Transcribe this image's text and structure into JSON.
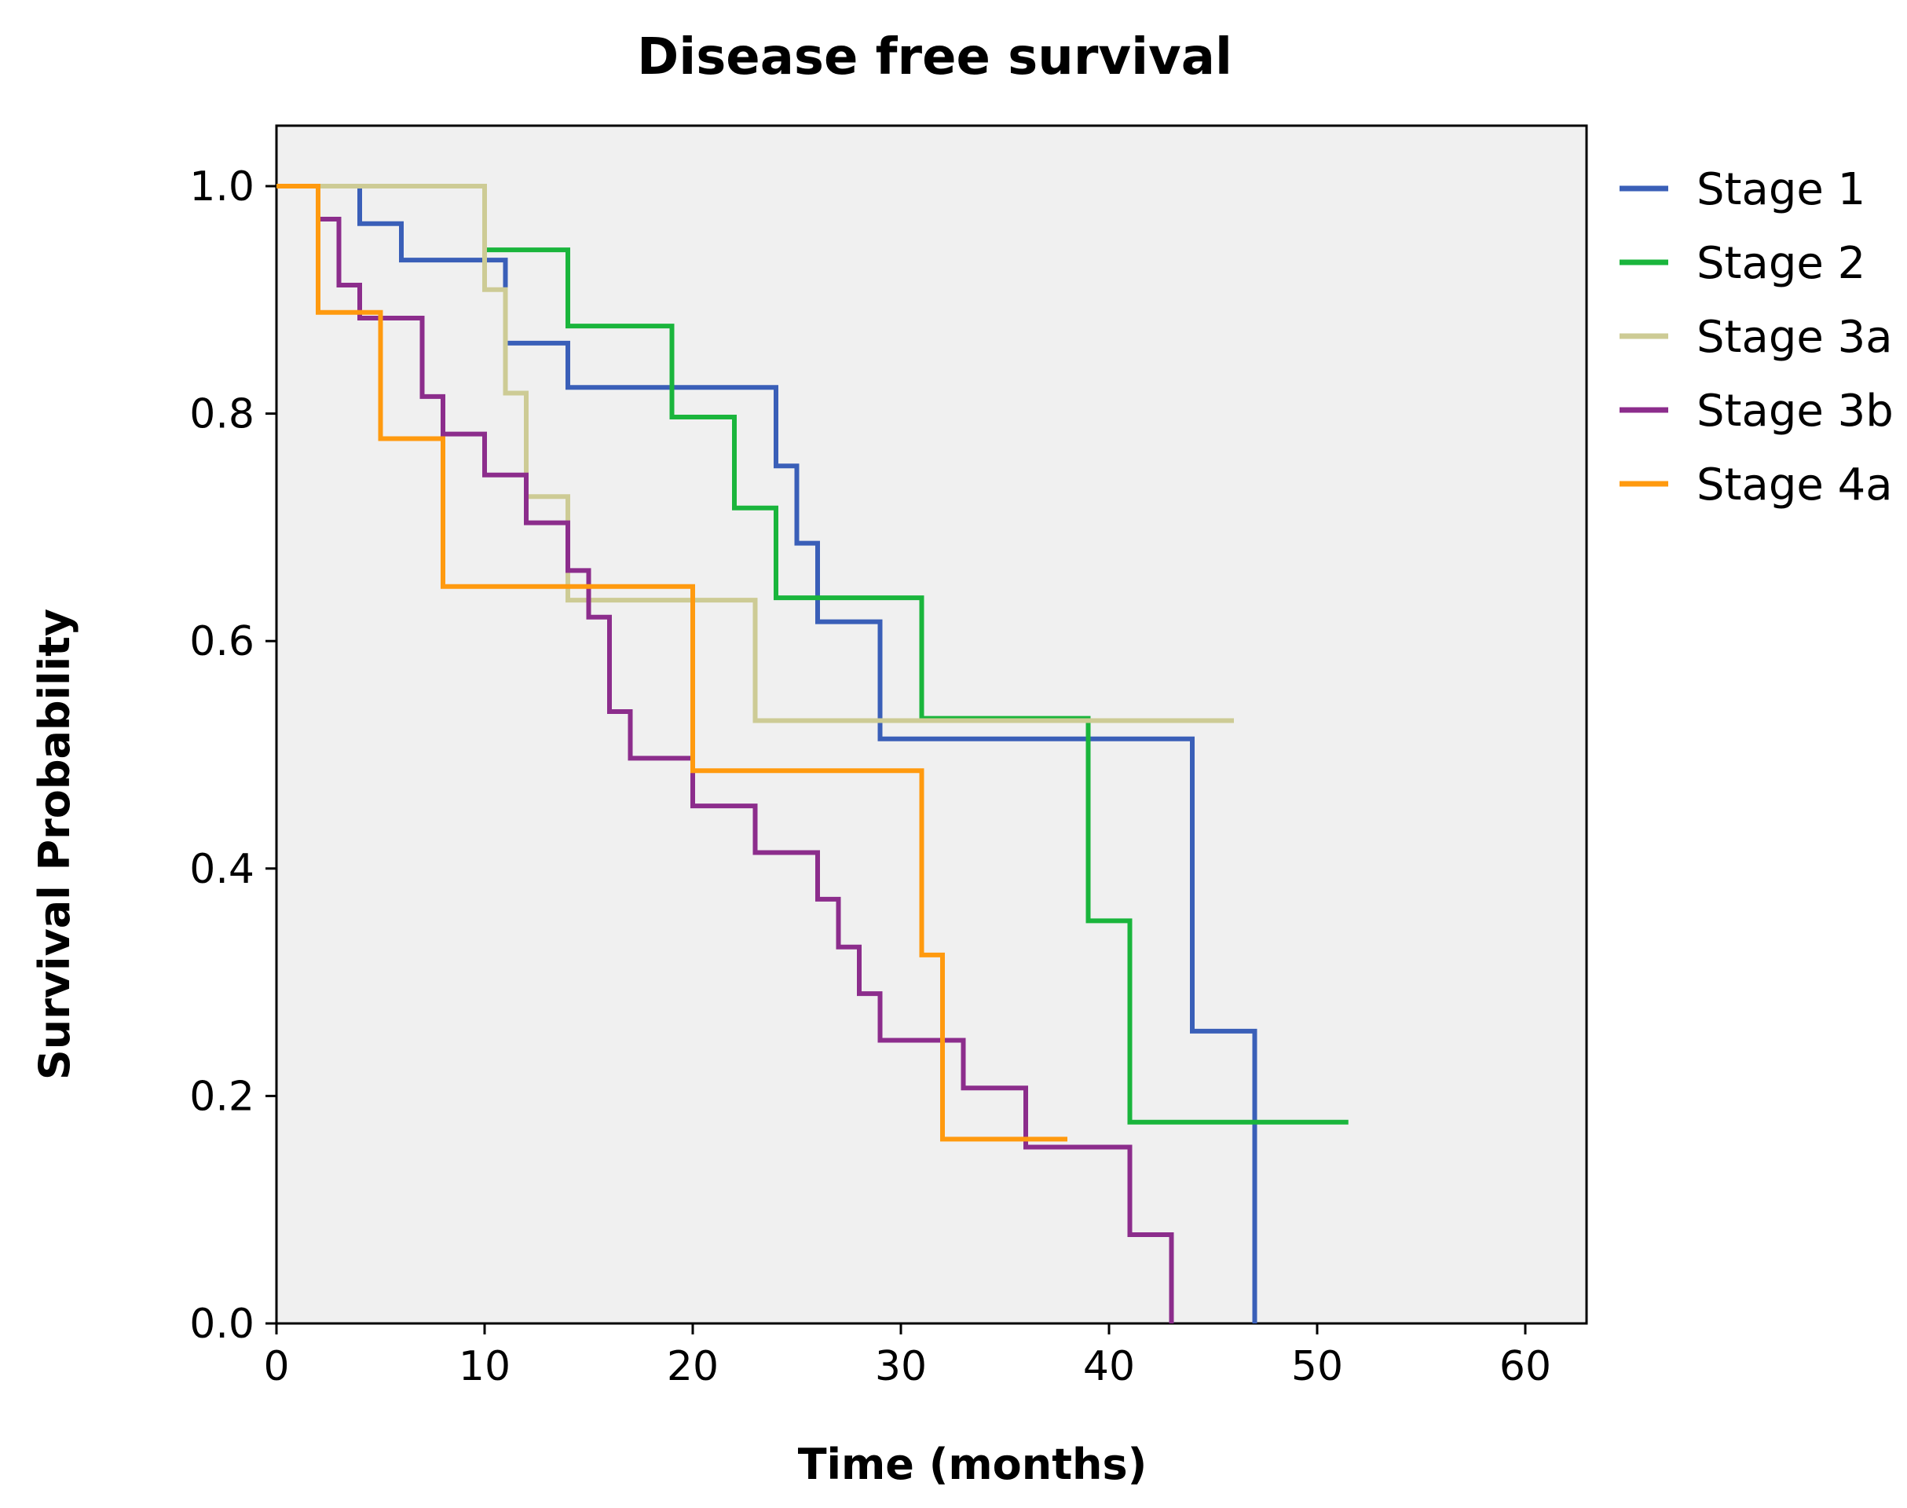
{
  "chart_data": {
    "type": "line",
    "subtype": "kaplan-meier-step",
    "title": "Disease free survival",
    "xlabel": "Time (months)",
    "ylabel": "Survival Probability",
    "xlim": [
      0,
      60
    ],
    "ylim": [
      0.0,
      1.0
    ],
    "x_ticks": [
      0,
      10,
      20,
      30,
      40,
      50,
      60
    ],
    "y_ticks": [
      0.0,
      0.2,
      0.4,
      0.6,
      0.8,
      1.0
    ],
    "x_tick_labels": [
      "0",
      "10",
      "20",
      "30",
      "40",
      "50",
      "60"
    ],
    "y_tick_labels": [
      "0.0",
      "0.2",
      "0.4",
      "0.6",
      "0.8",
      "1.0"
    ],
    "grid": false,
    "legend_position": "right",
    "plot_background": "#f0f0f0",
    "series": [
      {
        "name": "Stage 1",
        "color": "#3a5fb8",
        "points": [
          [
            0,
            1.0
          ],
          [
            4,
            0.967
          ],
          [
            6,
            0.935
          ],
          [
            11,
            0.862
          ],
          [
            14,
            0.823
          ],
          [
            24,
            0.754
          ],
          [
            25,
            0.686
          ],
          [
            26,
            0.617
          ],
          [
            29,
            0.514
          ],
          [
            44,
            0.257
          ],
          [
            47,
            0.0
          ]
        ]
      },
      {
        "name": "Stage 2",
        "color": "#1ab53c",
        "points": [
          [
            0,
            1.0
          ],
          [
            10,
            0.944
          ],
          [
            14,
            0.877
          ],
          [
            19,
            0.797
          ],
          [
            22,
            0.717
          ],
          [
            24,
            0.638
          ],
          [
            31,
            0.532
          ],
          [
            39,
            0.354
          ],
          [
            41,
            0.177
          ],
          [
            51.5,
            0.177
          ]
        ]
      },
      {
        "name": "Stage 3a",
        "color": "#cdcb95",
        "points": [
          [
            0,
            1.0
          ],
          [
            10,
            0.909
          ],
          [
            11,
            0.818
          ],
          [
            12,
            0.727
          ],
          [
            14,
            0.636
          ],
          [
            23,
            0.53
          ],
          [
            46,
            0.53
          ]
        ]
      },
      {
        "name": "Stage 3b",
        "color": "#8c2d8c",
        "points": [
          [
            0,
            1.0
          ],
          [
            2,
            0.971
          ],
          [
            3,
            0.913
          ],
          [
            4,
            0.884
          ],
          [
            7,
            0.815
          ],
          [
            8,
            0.782
          ],
          [
            10,
            0.746
          ],
          [
            12,
            0.704
          ],
          [
            14,
            0.662
          ],
          [
            15,
            0.621
          ],
          [
            16,
            0.538
          ],
          [
            17,
            0.497
          ],
          [
            20,
            0.455
          ],
          [
            23,
            0.414
          ],
          [
            26,
            0.373
          ],
          [
            27,
            0.331
          ],
          [
            28,
            0.29
          ],
          [
            29,
            0.249
          ],
          [
            33,
            0.207
          ],
          [
            36,
            0.155
          ],
          [
            41,
            0.078
          ],
          [
            43,
            0.0
          ]
        ]
      },
      {
        "name": "Stage 4a",
        "color": "#ff9a0f",
        "points": [
          [
            0,
            1.0
          ],
          [
            2,
            0.889
          ],
          [
            5,
            0.778
          ],
          [
            8,
            0.648
          ],
          [
            20,
            0.486
          ],
          [
            31,
            0.324
          ],
          [
            32,
            0.162
          ],
          [
            38,
            0.162
          ]
        ]
      }
    ]
  }
}
